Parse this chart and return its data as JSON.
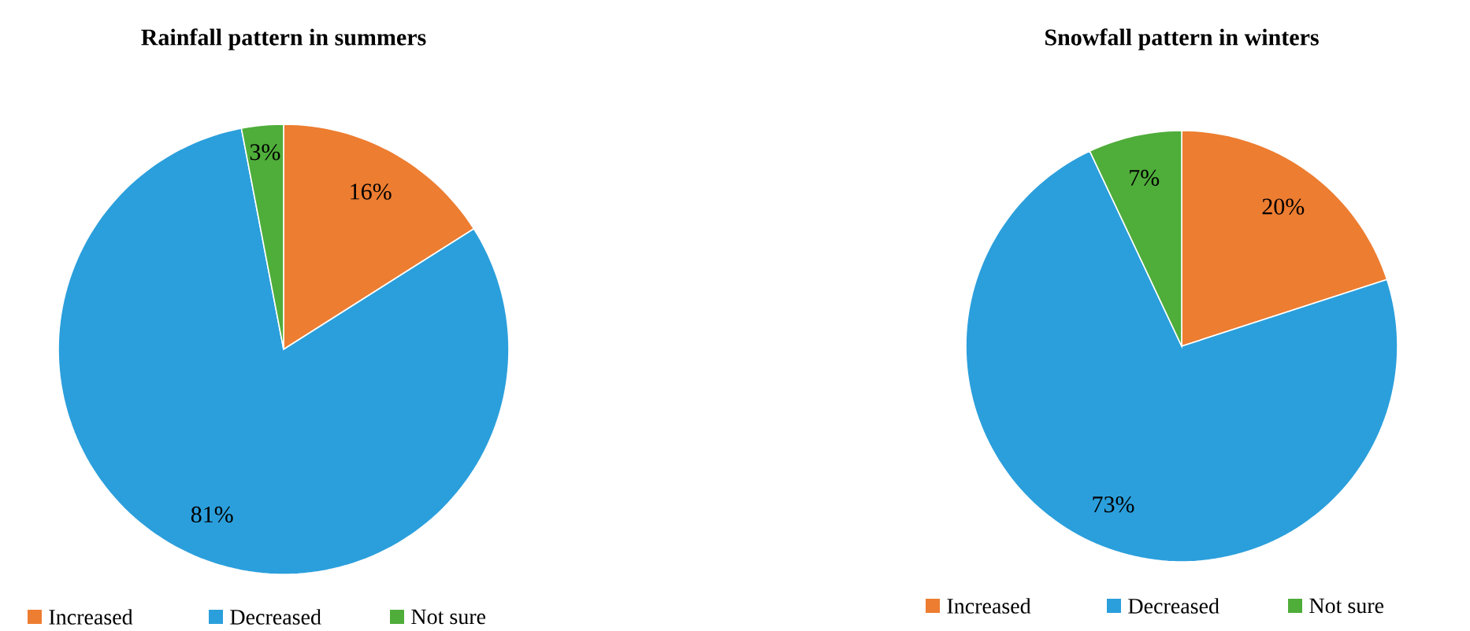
{
  "chart_data": [
    {
      "type": "pie",
      "title": "Rainfall pattern in summers",
      "categories": [
        "Increased",
        "Decreased",
        "Not sure"
      ],
      "values": [
        16,
        81,
        3
      ],
      "value_labels": [
        "16%",
        "81%",
        "3%"
      ],
      "colors": [
        "#ed7d31",
        "#2b9fdc",
        "#4fad3a"
      ],
      "legend": "bottom"
    },
    {
      "type": "pie",
      "title": "Snowfall pattern in winters",
      "categories": [
        "Increased",
        "Decreased",
        "Not sure"
      ],
      "values": [
        20,
        73,
        7
      ],
      "value_labels": [
        "20%",
        "73%",
        "7%"
      ],
      "colors": [
        "#ed7d31",
        "#2b9fdc",
        "#4fad3a"
      ],
      "legend": "bottom"
    }
  ]
}
